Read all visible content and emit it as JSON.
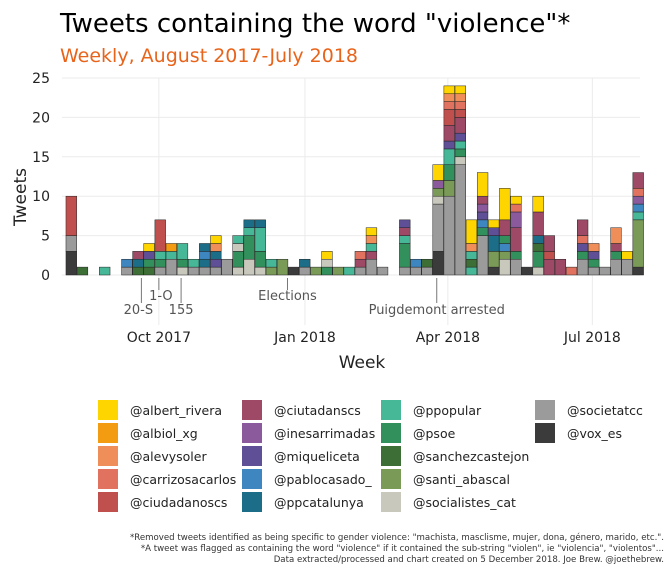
{
  "chart_data": {
    "type": "bar",
    "stacked": true,
    "title": "Tweets containing the word \"violence\"*",
    "subtitle": "Weekly, August 2017-July 2018",
    "xlabel": "Week",
    "ylabel": "Tweets",
    "ylim": [
      0,
      25
    ],
    "yticks": [
      0,
      5,
      10,
      15,
      20,
      25
    ],
    "xlim": [
      "2017-08-01",
      "2018-07-31"
    ],
    "xticks": [
      {
        "date": "2017-10-01",
        "label": "Oct 2017"
      },
      {
        "date": "2018-01-01",
        "label": "Jan 2018"
      },
      {
        "date": "2018-04-01",
        "label": "Apr 2018"
      },
      {
        "date": "2018-07-01",
        "label": "Jul 2018"
      }
    ],
    "grid": true,
    "legend_position": "bottom",
    "annotations": [
      {
        "date": "2017-09-20",
        "label": "20-S"
      },
      {
        "date": "2017-10-01",
        "label": "1-O"
      },
      {
        "date": "2017-10-15",
        "label": "155"
      },
      {
        "date": "2017-12-21",
        "label": "Elections"
      },
      {
        "date": "2018-03-25",
        "label": "Puigdemont arrested"
      }
    ],
    "series": [
      {
        "name": "@albert_rivera",
        "color": "#ffd500"
      },
      {
        "name": "@albiol_xg",
        "color": "#f39c12"
      },
      {
        "name": "@alevysoler",
        "color": "#f08e5a"
      },
      {
        "name": "@carrizosacarlos",
        "color": "#e0725f"
      },
      {
        "name": "@ciudadanoscs",
        "color": "#c0504d"
      },
      {
        "name": "@ciutadanscs",
        "color": "#9e4a66"
      },
      {
        "name": "@inesarrimadas",
        "color": "#8a5a9c"
      },
      {
        "name": "@miqueliceta",
        "color": "#5e4f96"
      },
      {
        "name": "@pablocasado_",
        "color": "#3d86c0"
      },
      {
        "name": "@ppcatalunya",
        "color": "#1c6e88"
      },
      {
        "name": "@ppopular",
        "color": "#46b898"
      },
      {
        "name": "@psoe",
        "color": "#32905c"
      },
      {
        "name": "@sanchezcastejon",
        "color": "#3d6e35"
      },
      {
        "name": "@santi_abascal",
        "color": "#7a9a58"
      },
      {
        "name": "@socialistes_cat",
        "color": "#c8c8bc"
      },
      {
        "name": "@societatcc",
        "color": "#9b9b9b"
      },
      {
        "name": "@vox_es",
        "color": "#3b3b3b"
      }
    ],
    "bars": [
      {
        "week": "2017-08-07",
        "segments": [
          [
            "@vox_es",
            3
          ],
          [
            "@societatcc",
            2
          ],
          [
            "@ciudadanoscs",
            5
          ]
        ]
      },
      {
        "week": "2017-08-14",
        "segments": [
          [
            "@sanchezcastejon",
            1
          ]
        ]
      },
      {
        "week": "2017-08-28",
        "segments": [
          [
            "@ppopular",
            1
          ]
        ]
      },
      {
        "week": "2017-09-11",
        "segments": [
          [
            "@societatcc",
            1
          ],
          [
            "@pablocasado_",
            1
          ]
        ]
      },
      {
        "week": "2017-09-18",
        "segments": [
          [
            "@sanchezcastejon",
            1
          ],
          [
            "@ppcatalunya",
            1
          ],
          [
            "@ciutadanscs",
            1
          ]
        ]
      },
      {
        "week": "2017-09-25",
        "segments": [
          [
            "@sanchezcastejon",
            1
          ],
          [
            "@psoe",
            1
          ],
          [
            "@miqueliceta",
            1
          ],
          [
            "@albert_rivera",
            1
          ]
        ]
      },
      {
        "week": "2017-10-02",
        "segments": [
          [
            "@societatcc",
            1
          ],
          [
            "@psoe",
            1
          ],
          [
            "@ppopular",
            1
          ],
          [
            "@ciudadanoscs",
            4
          ]
        ]
      },
      {
        "week": "2017-10-09",
        "segments": [
          [
            "@societatcc",
            2
          ],
          [
            "@ppopular",
            1
          ],
          [
            "@albiol_xg",
            1
          ]
        ]
      },
      {
        "week": "2017-10-16",
        "segments": [
          [
            "@socialistes_cat",
            1
          ],
          [
            "@psoe",
            1
          ],
          [
            "@ppopular",
            2
          ]
        ]
      },
      {
        "week": "2017-10-23",
        "segments": [
          [
            "@societatcc",
            1
          ],
          [
            "@ppopular",
            1
          ]
        ]
      },
      {
        "week": "2017-10-30",
        "segments": [
          [
            "@societatcc",
            1
          ],
          [
            "@ppcatalunya",
            1
          ],
          [
            "@pablocasado_",
            1
          ],
          [
            "@ppcatalunya",
            1
          ]
        ]
      },
      {
        "week": "2017-11-06",
        "segments": [
          [
            "@societatcc",
            1
          ],
          [
            "@miqueliceta",
            1
          ],
          [
            "@ppcatalunya",
            1
          ],
          [
            "@alevysoler",
            1
          ],
          [
            "@albert_rivera",
            1
          ]
        ]
      },
      {
        "week": "2017-11-13",
        "segments": [
          [
            "@societatcc",
            2
          ]
        ]
      },
      {
        "week": "2017-11-20",
        "segments": [
          [
            "@socialistes_cat",
            1
          ],
          [
            "@psoe",
            2
          ],
          [
            "@socialistes_cat",
            1
          ],
          [
            "@ppopular",
            1
          ]
        ]
      },
      {
        "week": "2017-11-27",
        "segments": [
          [
            "@socialistes_cat",
            2
          ],
          [
            "@psoe",
            3
          ],
          [
            "@ppopular",
            1
          ],
          [
            "@ppcatalunya",
            1
          ]
        ]
      },
      {
        "week": "2017-12-04",
        "segments": [
          [
            "@socialistes_cat",
            1
          ],
          [
            "@psoe",
            2
          ],
          [
            "@ppopular",
            3
          ],
          [
            "@ppcatalunya",
            1
          ]
        ]
      },
      {
        "week": "2017-12-11",
        "segments": [
          [
            "@santi_abascal",
            1
          ],
          [
            "@ppopular",
            1
          ]
        ]
      },
      {
        "week": "2017-12-18",
        "segments": [
          [
            "@santi_abascal",
            2
          ]
        ]
      },
      {
        "week": "2017-12-25",
        "segments": [
          [
            "@vox_es",
            1
          ]
        ]
      },
      {
        "week": "2018-01-01",
        "segments": [
          [
            "@societatcc",
            1
          ],
          [
            "@ppcatalunya",
            1
          ]
        ]
      },
      {
        "week": "2018-01-08",
        "segments": [
          [
            "@santi_abascal",
            1
          ]
        ]
      },
      {
        "week": "2018-01-15",
        "segments": [
          [
            "@psoe",
            1
          ],
          [
            "@socialistes_cat",
            1
          ],
          [
            "@albert_rivera",
            1
          ]
        ]
      },
      {
        "week": "2018-01-22",
        "segments": [
          [
            "@santi_abascal",
            1
          ]
        ]
      },
      {
        "week": "2018-01-29",
        "segments": [
          [
            "@ppopular",
            1
          ]
        ]
      },
      {
        "week": "2018-02-05",
        "segments": [
          [
            "@societatcc",
            1
          ],
          [
            "@ciutadanscs",
            1
          ],
          [
            "@carrizosacarlos",
            1
          ]
        ]
      },
      {
        "week": "2018-02-12",
        "segments": [
          [
            "@societatcc",
            2
          ],
          [
            "@ciutadanscs",
            1
          ],
          [
            "@ppopular",
            1
          ],
          [
            "@alevysoler",
            1
          ],
          [
            "@albert_rivera",
            1
          ]
        ]
      },
      {
        "week": "2018-02-19",
        "segments": [
          [
            "@societatcc",
            1
          ]
        ]
      },
      {
        "week": "2018-03-05",
        "segments": [
          [
            "@societatcc",
            1
          ],
          [
            "@psoe",
            3
          ],
          [
            "@ppopular",
            1
          ],
          [
            "@ciutadanscs",
            1
          ],
          [
            "@miqueliceta",
            1
          ]
        ]
      },
      {
        "week": "2018-03-12",
        "segments": [
          [
            "@societatcc",
            1
          ],
          [
            "@pablocasado_",
            1
          ]
        ]
      },
      {
        "week": "2018-03-19",
        "segments": [
          [
            "@societatcc",
            1
          ],
          [
            "@sanchezcastejon",
            1
          ]
        ]
      },
      {
        "week": "2018-03-26",
        "segments": [
          [
            "@vox_es",
            3
          ],
          [
            "@societatcc",
            6
          ],
          [
            "@socialistes_cat",
            1
          ],
          [
            "@santi_abascal",
            1
          ],
          [
            "@inesarrimadas",
            1
          ],
          [
            "@albert_rivera",
            2
          ]
        ]
      },
      {
        "week": "2018-04-02",
        "segments": [
          [
            "@societatcc",
            10
          ],
          [
            "@santi_abascal",
            2
          ],
          [
            "@psoe",
            2
          ],
          [
            "@ppopular",
            2
          ],
          [
            "@miqueliceta",
            1
          ],
          [
            "@ciutadanscs",
            2
          ],
          [
            "@ciudadanoscs",
            2
          ],
          [
            "@carrizosacarlos",
            1
          ],
          [
            "@alevysoler",
            1
          ],
          [
            "@albert_rivera",
            1
          ]
        ]
      },
      {
        "week": "2018-04-09",
        "segments": [
          [
            "@societatcc",
            14
          ],
          [
            "@socialistes_cat",
            1
          ],
          [
            "@psoe",
            1
          ],
          [
            "@ppopular",
            1
          ],
          [
            "@miqueliceta",
            1
          ],
          [
            "@ciutadanscs",
            2
          ],
          [
            "@ciudadanoscs",
            1
          ],
          [
            "@carrizosacarlos",
            1
          ],
          [
            "@alevysoler",
            1
          ],
          [
            "@albert_rivera",
            1
          ]
        ]
      },
      {
        "week": "2018-04-16",
        "segments": [
          [
            "@ppopular",
            1
          ],
          [
            "@sanchezcastejon",
            1
          ],
          [
            "@ppopular",
            1
          ],
          [
            "@alevysoler",
            1
          ],
          [
            "@albert_rivera",
            3
          ]
        ]
      },
      {
        "week": "2018-04-23",
        "segments": [
          [
            "@societatcc",
            5
          ],
          [
            "@psoe",
            1
          ],
          [
            "@pablocasado_",
            1
          ],
          [
            "@miqueliceta",
            1
          ],
          [
            "@inesarrimadas",
            1
          ],
          [
            "@ciutadanscs",
            1
          ],
          [
            "@albert_rivera",
            3
          ]
        ]
      },
      {
        "week": "2018-04-30",
        "segments": [
          [
            "@vox_es",
            1
          ],
          [
            "@santi_abascal",
            2
          ],
          [
            "@ppcatalunya",
            2
          ],
          [
            "@miqueliceta",
            1
          ],
          [
            "@albert_rivera",
            1
          ]
        ]
      },
      {
        "week": "2018-05-07",
        "segments": [
          [
            "@socialistes_cat",
            2
          ],
          [
            "@santi_abascal",
            1
          ],
          [
            "@pablocasado_",
            1
          ],
          [
            "@psoe",
            1
          ],
          [
            "@ciutadanscs",
            2
          ],
          [
            "@albert_rivera",
            4
          ]
        ]
      },
      {
        "week": "2018-05-14",
        "segments": [
          [
            "@societatcc",
            2
          ],
          [
            "@psoe",
            1
          ],
          [
            "@ciutadanscs",
            3
          ],
          [
            "@inesarrimadas",
            2
          ],
          [
            "@carrizosacarlos",
            1
          ],
          [
            "@albert_rivera",
            1
          ]
        ]
      },
      {
        "week": "2018-05-21",
        "segments": [
          [
            "@vox_es",
            1
          ]
        ]
      },
      {
        "week": "2018-05-28",
        "segments": [
          [
            "@socialistes_cat",
            1
          ],
          [
            "@psoe",
            2
          ],
          [
            "@sanchezcastejon",
            1
          ],
          [
            "@ppcatalunya",
            1
          ],
          [
            "@ciutadanscs",
            3
          ],
          [
            "@albert_rivera",
            2
          ]
        ]
      },
      {
        "week": "2018-06-04",
        "segments": [
          [
            "@ciutadanscs",
            2
          ],
          [
            "@ciudadanoscs",
            1
          ],
          [
            "@ciutadanscs",
            2
          ]
        ]
      },
      {
        "week": "2018-06-11",
        "segments": [
          [
            "@ciutadanscs",
            2
          ]
        ]
      },
      {
        "week": "2018-06-18",
        "segments": [
          [
            "@carrizosacarlos",
            1
          ]
        ]
      },
      {
        "week": "2018-06-25",
        "segments": [
          [
            "@societatcc",
            2
          ],
          [
            "@psoe",
            1
          ],
          [
            "@miqueliceta",
            1
          ],
          [
            "@carrizosacarlos",
            1
          ],
          [
            "@ciutadanscs",
            2
          ]
        ]
      },
      {
        "week": "2018-07-02",
        "segments": [
          [
            "@societatcc",
            1
          ],
          [
            "@psoe",
            1
          ],
          [
            "@miqueliceta",
            1
          ],
          [
            "@alevysoler",
            1
          ]
        ]
      },
      {
        "week": "2018-07-09",
        "segments": [
          [
            "@societatcc",
            1
          ]
        ]
      },
      {
        "week": "2018-07-16",
        "segments": [
          [
            "@societatcc",
            2
          ],
          [
            "@psoe",
            1
          ],
          [
            "@ciutadanscs",
            1
          ],
          [
            "@alevysoler",
            2
          ]
        ]
      },
      {
        "week": "2018-07-23",
        "segments": [
          [
            "@societatcc",
            2
          ],
          [
            "@albert_rivera",
            1
          ]
        ]
      },
      {
        "week": "2018-07-30",
        "segments": [
          [
            "@vox_es",
            1
          ],
          [
            "@santi_abascal",
            6
          ],
          [
            "@ppopular",
            1
          ],
          [
            "@pablocasado_",
            1
          ],
          [
            "@inesarrimadas",
            1
          ],
          [
            "@carrizosacarlos",
            1
          ],
          [
            "@ciutadanscs",
            2
          ]
        ]
      }
    ],
    "caption": [
      "*Removed tweets identified as being specific to gender violence: \"machista, masclisme, mujer, dona, género, marido, etc.\".",
      "*A tweet was flagged as containing the word \"violence\" if it contained the sub-string \"violen\", ie \"violencia\", \"violentos\"...",
      "Data extracted/processed and chart created on 5 December 2018. Joe Brew. @joethebrew."
    ]
  }
}
